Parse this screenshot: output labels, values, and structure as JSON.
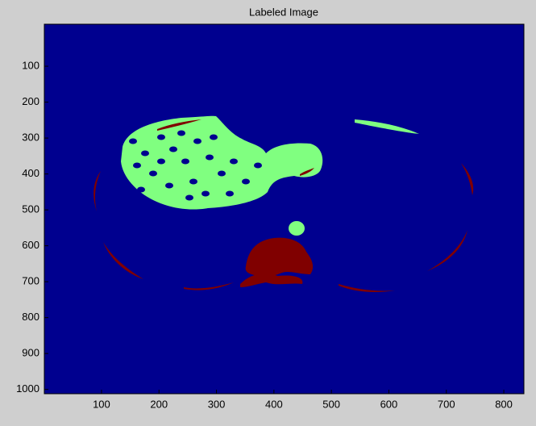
{
  "chart_data": {
    "type": "image",
    "title": "Labeled Image",
    "xlim": [
      0.5,
      835
    ],
    "ylim": [
      -17,
      1012
    ],
    "xticks": [
      100,
      200,
      300,
      400,
      500,
      600,
      700,
      800
    ],
    "yticks": [
      100,
      200,
      300,
      400,
      500,
      600,
      700,
      800,
      900,
      1000
    ],
    "y_reversed": true,
    "colors": {
      "background": "#00008f",
      "label1": "#80ff80",
      "label2": "#800000"
    }
  }
}
